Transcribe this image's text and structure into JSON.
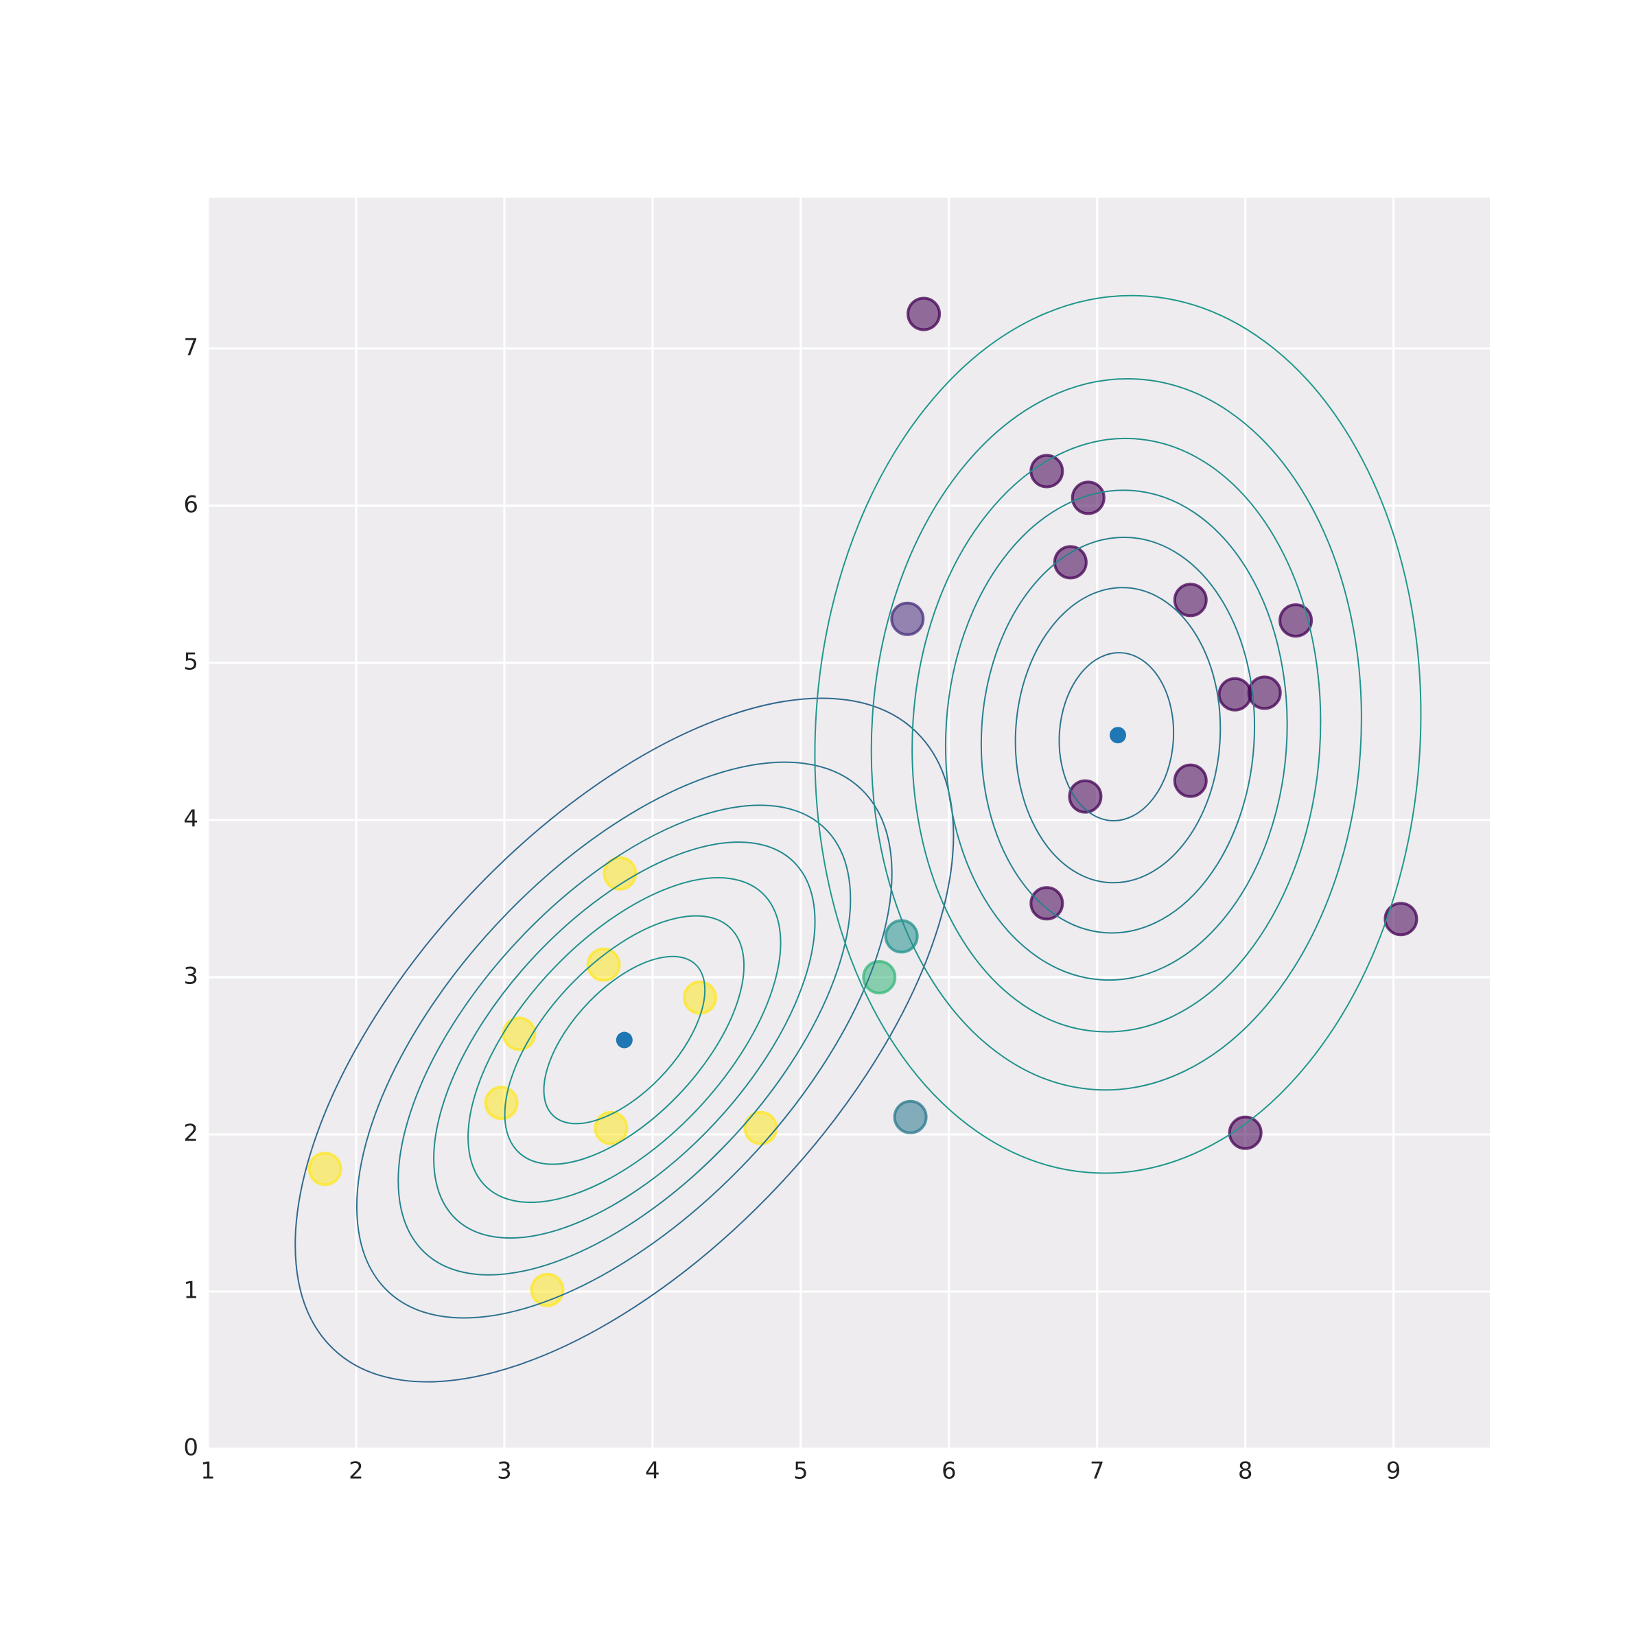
{
  "chart_data": {
    "type": "scatter",
    "x": [
      5.83,
      6.66,
      6.94,
      6.82,
      7.63,
      5.72,
      8.34,
      7.93,
      8.13,
      7.63,
      6.92,
      6.66,
      9.05,
      8.0,
      5.68,
      5.53,
      5.74,
      3.78,
      3.67,
      4.32,
      3.1,
      2.98,
      3.72,
      4.73,
      1.79,
      3.29
    ],
    "y": [
      7.22,
      6.22,
      6.05,
      5.64,
      5.4,
      5.28,
      5.27,
      4.8,
      4.81,
      4.25,
      4.15,
      3.47,
      3.37,
      2.01,
      3.26,
      3.0,
      2.11,
      3.66,
      3.08,
      2.87,
      2.64,
      2.2,
      2.04,
      2.04,
      1.78,
      1.01
    ],
    "colors": [
      "#440154",
      "#440154",
      "#440154",
      "#440154",
      "#440154",
      "#472d7b",
      "#440154",
      "#440154",
      "#440154",
      "#440154",
      "#440154",
      "#440154",
      "#440154",
      "#440154",
      "#21918c",
      "#35b779",
      "#2a788e",
      "#fde725",
      "#fde725",
      "#fde725",
      "#fde725",
      "#fde725",
      "#fde725",
      "#fde725",
      "#fde725",
      "#fde725"
    ],
    "centers": {
      "x": [
        3.81,
        7.14
      ],
      "y": [
        2.6,
        4.54
      ],
      "color": "#1f77b4"
    },
    "contours": [
      {
        "cx": 3.81,
        "cy": 2.6,
        "rx": 0.68,
        "ry": 0.34,
        "angle": 44,
        "color": "#21918c"
      },
      {
        "cx": 3.81,
        "cy": 2.6,
        "rx": 1.01,
        "ry": 0.505,
        "angle": 44,
        "color": "#21918c"
      },
      {
        "cx": 3.81,
        "cy": 2.6,
        "rx": 1.32,
        "ry": 0.66,
        "angle": 44,
        "color": "#21918c"
      },
      {
        "cx": 3.81,
        "cy": 2.6,
        "rx": 1.61,
        "ry": 0.805,
        "angle": 44,
        "color": "#23898e"
      },
      {
        "cx": 3.81,
        "cy": 2.6,
        "rx": 1.91,
        "ry": 0.955,
        "angle": 44,
        "color": "#26828e"
      },
      {
        "cx": 3.81,
        "cy": 2.6,
        "rx": 2.26,
        "ry": 1.13,
        "angle": 44,
        "color": "#2c728e"
      },
      {
        "cx": 3.81,
        "cy": 2.6,
        "rx": 2.78,
        "ry": 1.39,
        "angle": 44,
        "color": "#31688e"
      },
      {
        "cx": 7.13,
        "cy": 4.53,
        "rx": 0.385,
        "ry": 0.535,
        "angle": -4,
        "color": "#2c728e"
      },
      {
        "cx": 7.14,
        "cy": 4.54,
        "rx": 0.69,
        "ry": 0.94,
        "angle": -4,
        "color": "#2a788e"
      },
      {
        "cx": 7.14,
        "cy": 4.54,
        "rx": 0.92,
        "ry": 1.26,
        "angle": -4,
        "color": "#26828e"
      },
      {
        "cx": 7.13,
        "cy": 4.54,
        "rx": 1.15,
        "ry": 1.56,
        "angle": -4,
        "color": "#23898e"
      },
      {
        "cx": 7.13,
        "cy": 4.54,
        "rx": 1.375,
        "ry": 1.89,
        "angle": -4,
        "color": "#21918c"
      },
      {
        "cx": 7.13,
        "cy": 4.545,
        "rx": 1.65,
        "ry": 2.265,
        "angle": -4,
        "color": "#21918c"
      },
      {
        "cx": 7.14,
        "cy": 4.545,
        "rx": 2.04,
        "ry": 2.795,
        "angle": -4,
        "color": "#1f988b"
      }
    ],
    "xlim": [
      1,
      9.65
    ],
    "ylim": [
      0,
      7.96
    ],
    "xticks": [
      1,
      2,
      3,
      4,
      5,
      6,
      7,
      8,
      9
    ],
    "yticks": [
      0,
      1,
      2,
      3,
      4,
      5,
      6,
      7
    ],
    "grid": true
  }
}
